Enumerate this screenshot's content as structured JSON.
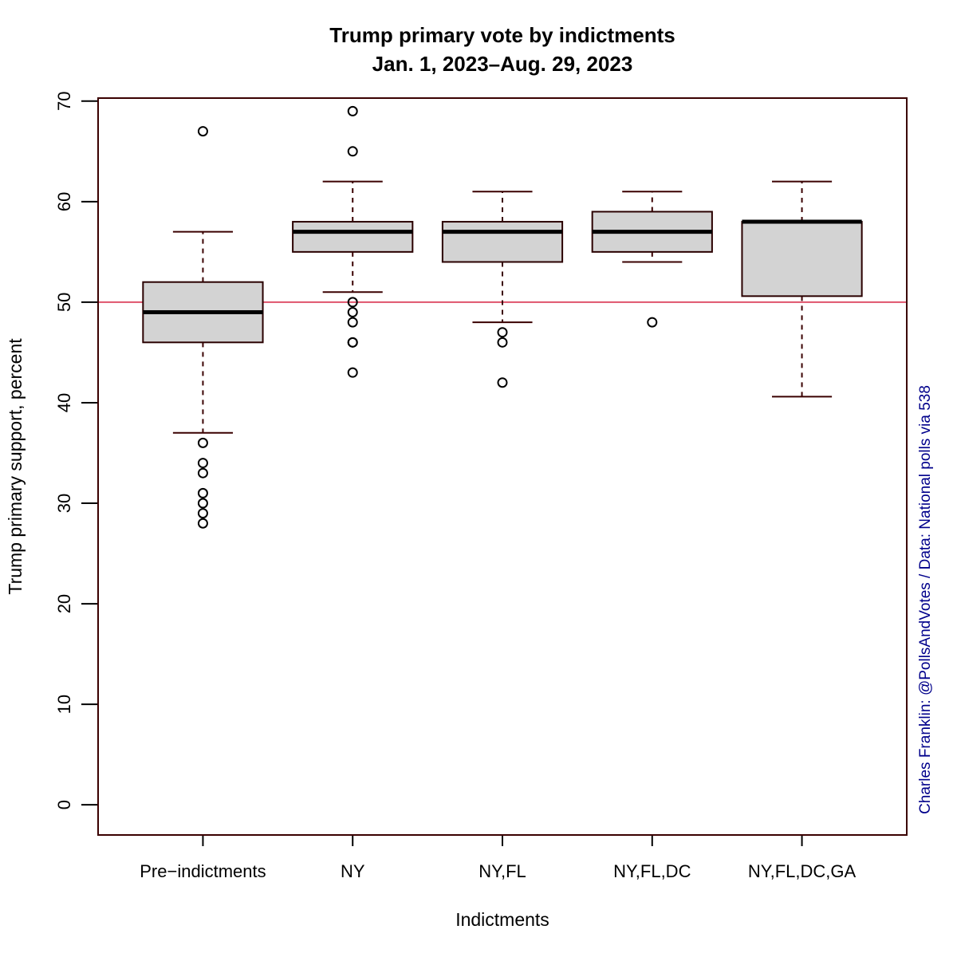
{
  "chart_data": {
    "type": "boxplot",
    "title": "Trump primary vote by indictments",
    "subtitle": "Jan. 1, 2023–Aug. 29, 2023",
    "xlabel": "Indictments",
    "ylabel": "Trump primary support, percent",
    "ylim": [
      -3,
      70.3
    ],
    "yticks": [
      0,
      10,
      20,
      30,
      40,
      50,
      60,
      70
    ],
    "reference_line": {
      "y": 50,
      "color": "#DF536B"
    },
    "colors": {
      "box_fill": "#D3D3D3",
      "frame": "#3a0000",
      "credit": "#00008B"
    },
    "credit": "Charles Franklin: @PollsAndVotes / Data: National polls via 538",
    "categories": [
      "Pre−indictments",
      "NY",
      "NY,FL",
      "NY,FL,DC",
      "NY,FL,DC,GA"
    ],
    "boxes": [
      {
        "whisker_low": 37,
        "q1": 46,
        "median": 49,
        "q3": 52,
        "whisker_high": 57,
        "outliers": [
          67,
          36,
          34,
          33,
          31,
          30,
          29,
          28
        ]
      },
      {
        "whisker_low": 51,
        "q1": 55,
        "median": 57,
        "q3": 58,
        "whisker_high": 62,
        "outliers": [
          69,
          65,
          50,
          49,
          48,
          46,
          46,
          43
        ]
      },
      {
        "whisker_low": 48,
        "q1": 54,
        "median": 57,
        "q3": 58,
        "whisker_high": 61,
        "outliers": [
          47,
          46,
          42
        ]
      },
      {
        "whisker_low": 54,
        "q1": 55,
        "median": 57,
        "q3": 59,
        "whisker_high": 61,
        "outliers": [
          48
        ]
      },
      {
        "whisker_low": 40.6,
        "q1": 50.6,
        "median": 58,
        "q3": 58,
        "whisker_high": 62,
        "outliers": []
      }
    ]
  }
}
